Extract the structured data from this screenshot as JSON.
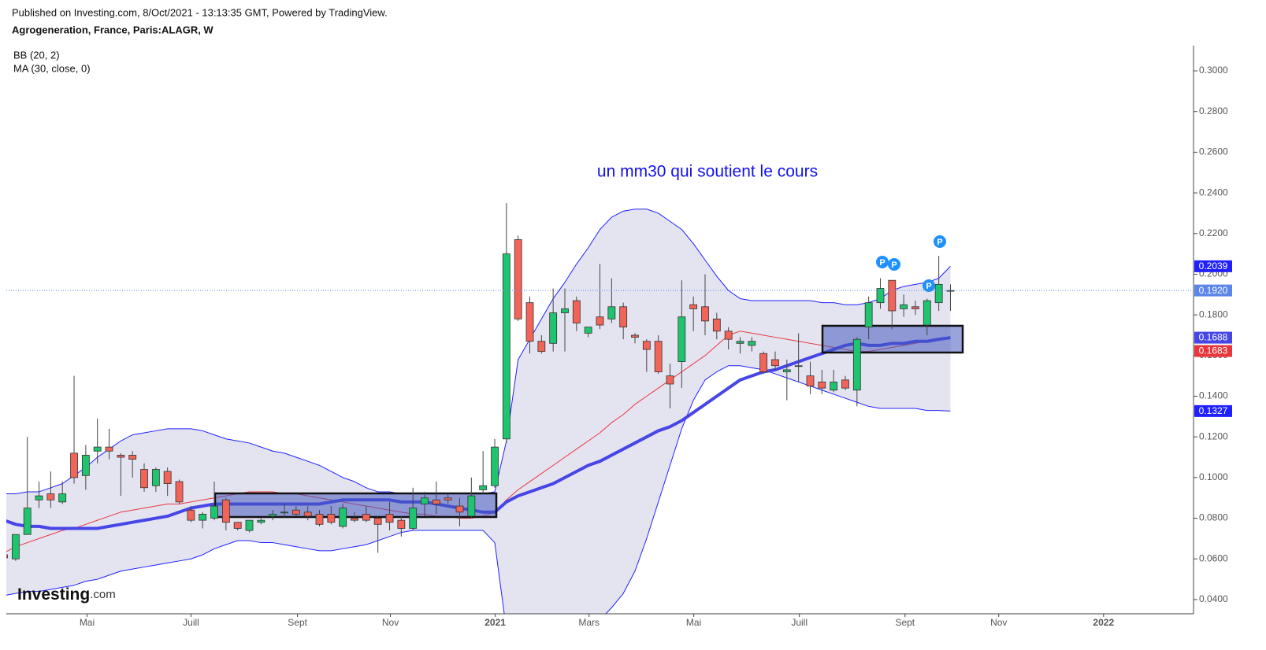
{
  "chart_data": {
    "type": "candlestick",
    "source": "Published on Investing.com, 8/Oct/2021 - 13:13:35 GMT, Powered by TradingView.",
    "title": "Agrogeneration, France, Paris:ALAGR, W",
    "logo": "Investing",
    "logo_suffix": ".com",
    "annotation": "un mm30 qui soutient le cours",
    "marker_label": "P",
    "categories": [
      null,
      null,
      null,
      null,
      null,
      null,
      null,
      null,
      null,
      null,
      null,
      null,
      null,
      null,
      null,
      null,
      null,
      null,
      null,
      null,
      null,
      null,
      null,
      null,
      null,
      null,
      null,
      null,
      null,
      null,
      null,
      null,
      null,
      null,
      null,
      null,
      null,
      null,
      null,
      null,
      null,
      null,
      null,
      null,
      null,
      null,
      null,
      null,
      null,
      null,
      null,
      null,
      null,
      null,
      null,
      null,
      null,
      null,
      null,
      null,
      null,
      null,
      null,
      null,
      null,
      null,
      null,
      null,
      null,
      null,
      null,
      null,
      null,
      null,
      null,
      null,
      null,
      null,
      null,
      null,
      null,
      null
    ],
    "xlim": [
      0.2,
      101.8
    ],
    "xticks": [
      {
        "value": 7.11,
        "label": "Mai"
      },
      {
        "value": 16.01,
        "label": "Juill"
      },
      {
        "value": 25.12,
        "label": "Sept"
      },
      {
        "value": 33.07,
        "label": "Nov"
      },
      {
        "value": 42.04,
        "label": "2021"
      },
      {
        "value": 50.07,
        "label": "Mars"
      },
      {
        "value": 59.03,
        "label": "Mai"
      },
      {
        "value": 68.07,
        "label": "Juill"
      },
      {
        "value": 77.11,
        "label": "Sept"
      },
      {
        "value": 85.13,
        "label": "Nov"
      },
      {
        "value": 94.1,
        "label": "2022"
      }
    ],
    "ylim": [
      0.033,
      0.3124
    ],
    "yticks": [
      {
        "value": 0.04,
        "label": "0.0400"
      },
      {
        "value": 0.06,
        "label": "0.0600"
      },
      {
        "value": 0.08,
        "label": "0.0800"
      },
      {
        "value": 0.1,
        "label": "0.1000"
      },
      {
        "value": 0.12,
        "label": "0.1200"
      },
      {
        "value": 0.14,
        "label": "0.1400"
      },
      {
        "value": 0.16,
        "label": "0.1600"
      },
      {
        "value": 0.18,
        "label": "0.1800"
      },
      {
        "value": 0.2,
        "label": "0.2000"
      },
      {
        "value": 0.22,
        "label": "0.2200"
      },
      {
        "value": 0.24,
        "label": "0.2400"
      },
      {
        "value": 0.26,
        "label": "0.2600"
      },
      {
        "value": 0.28,
        "label": "0.2800"
      },
      {
        "value": 0.3,
        "label": "0.3000"
      }
    ],
    "up_color": "#1ec46e",
    "down_color": "#f26457",
    "close_line_color": "#5b86e8",
    "close_last_label": "0.1920",
    "ohlc": {
      "open": [
        0.062,
        0.06,
        0.072,
        0.089,
        0.092,
        0.088,
        0.112,
        0.101,
        0.113,
        0.115,
        0.111,
        0.111,
        0.104,
        0.096,
        0.103,
        0.098,
        0.084,
        0.079,
        0.08,
        0.089,
        0.078,
        0.074,
        0.078,
        0.081,
        0.083,
        0.084,
        0.083,
        0.082,
        0.082,
        0.076,
        0.08,
        0.082,
        0.08,
        0.082,
        0.079,
        0.075,
        0.087,
        0.089,
        0.09,
        0.086,
        0.081,
        0.094,
        0.096,
        0.119,
        0.217,
        0.186,
        0.167,
        0.166,
        0.181,
        0.187,
        0.171,
        0.179,
        0.178,
        0.184,
        0.17,
        0.167,
        0.167,
        0.15,
        0.157,
        0.185,
        0.184,
        0.178,
        0.172,
        0.166,
        0.165,
        0.161,
        0.158,
        0.152,
        0.155,
        0.15,
        0.147,
        0.143,
        0.148,
        0.143,
        0.174,
        0.186,
        0.197,
        0.183,
        0.184,
        0.175,
        0.186,
        0.192
      ],
      "high": [
        0.062,
        0.072,
        0.12,
        0.098,
        0.103,
        0.098,
        0.15,
        0.116,
        0.129,
        0.124,
        0.112,
        0.113,
        0.107,
        0.105,
        0.105,
        0.099,
        0.086,
        0.083,
        0.098,
        0.09,
        0.078,
        0.079,
        0.08,
        0.084,
        0.087,
        0.086,
        0.086,
        0.084,
        0.086,
        0.087,
        0.083,
        0.086,
        0.081,
        0.088,
        0.081,
        0.095,
        0.093,
        0.098,
        0.092,
        0.09,
        0.1,
        0.113,
        0.119,
        0.235,
        0.219,
        0.189,
        0.17,
        0.193,
        0.193,
        0.189,
        0.174,
        0.205,
        0.198,
        0.186,
        0.171,
        0.168,
        0.17,
        0.156,
        0.197,
        0.189,
        0.2,
        0.181,
        0.174,
        0.169,
        0.169,
        0.162,
        0.162,
        0.158,
        0.171,
        0.157,
        0.153,
        0.153,
        0.15,
        0.169,
        0.189,
        0.198,
        0.197,
        0.19,
        0.187,
        0.188,
        0.209,
        0.195
      ],
      "low": [
        0.059,
        0.059,
        0.072,
        0.085,
        0.085,
        0.087,
        0.097,
        0.094,
        0.107,
        0.109,
        0.091,
        0.1,
        0.093,
        0.093,
        0.091,
        0.087,
        0.078,
        0.075,
        0.079,
        0.074,
        0.074,
        0.073,
        0.077,
        0.079,
        0.08,
        0.081,
        0.079,
        0.076,
        0.077,
        0.075,
        0.078,
        0.078,
        0.063,
        0.074,
        0.071,
        0.074,
        0.081,
        0.082,
        0.087,
        0.076,
        0.08,
        0.092,
        0.095,
        0.117,
        0.177,
        0.161,
        0.161,
        0.162,
        0.162,
        0.172,
        0.169,
        0.173,
        0.176,
        0.168,
        0.166,
        0.152,
        0.151,
        0.134,
        0.144,
        0.172,
        0.17,
        0.168,
        0.163,
        0.161,
        0.162,
        0.151,
        0.153,
        0.138,
        0.147,
        0.141,
        0.141,
        0.142,
        0.143,
        0.135,
        0.168,
        0.183,
        0.173,
        0.179,
        0.18,
        0.17,
        0.182,
        0.182
      ],
      "close": [
        0.0605,
        0.072,
        0.085,
        0.091,
        0.089,
        0.092,
        0.1,
        0.111,
        0.115,
        0.113,
        0.11,
        0.109,
        0.095,
        0.104,
        0.097,
        0.088,
        0.079,
        0.082,
        0.086,
        0.078,
        0.075,
        0.079,
        0.079,
        0.082,
        0.083,
        0.082,
        0.081,
        0.077,
        0.078,
        0.085,
        0.079,
        0.079,
        0.077,
        0.078,
        0.075,
        0.085,
        0.09,
        0.087,
        0.089,
        0.083,
        0.091,
        0.096,
        0.115,
        0.21,
        0.178,
        0.167,
        0.162,
        0.181,
        0.183,
        0.176,
        0.174,
        0.175,
        0.184,
        0.174,
        0.169,
        0.163,
        0.152,
        0.146,
        0.179,
        0.183,
        0.177,
        0.172,
        0.168,
        0.167,
        0.167,
        0.152,
        0.155,
        0.153,
        0.155,
        0.145,
        0.144,
        0.147,
        0.144,
        0.168,
        0.186,
        0.193,
        0.182,
        0.185,
        0.183,
        0.187,
        0.195,
        0.192
      ]
    },
    "bb": {
      "label": "BB (20, 2)",
      "fill": "#e4e4f1",
      "upper": {
        "color": "#2020ff",
        "last_label": "0.2039",
        "values": [
          0.092,
          0.092,
          0.093,
          0.093,
          0.095,
          0.097,
          0.101,
          0.105,
          0.11,
          0.114,
          0.118,
          0.121,
          0.122,
          0.123,
          0.124,
          0.124,
          0.124,
          0.123,
          0.121,
          0.119,
          0.118,
          0.117,
          0.115,
          0.113,
          0.112,
          0.11,
          0.108,
          0.106,
          0.103,
          0.1,
          0.098,
          0.095,
          0.093,
          0.093,
          0.092,
          0.092,
          0.092,
          0.092,
          0.092,
          0.092,
          0.092,
          0.092,
          0.093,
          0.118,
          0.158,
          0.168,
          0.178,
          0.188,
          0.196,
          0.205,
          0.213,
          0.222,
          0.228,
          0.231,
          0.232,
          0.232,
          0.23,
          0.226,
          0.222,
          0.215,
          0.207,
          0.199,
          0.192,
          0.188,
          0.187,
          0.187,
          0.187,
          0.187,
          0.187,
          0.187,
          0.186,
          0.186,
          0.185,
          0.185,
          0.186,
          0.188,
          0.192,
          0.194,
          0.195,
          0.196,
          0.198,
          0.2039
        ]
      },
      "basis": {
        "color": "#e8363c",
        "last_label": "0.1683",
        "values": [
          0.063,
          0.066,
          0.068,
          0.07,
          0.072,
          0.074,
          0.075,
          0.077,
          0.079,
          0.081,
          0.083,
          0.084,
          0.085,
          0.086,
          0.087,
          0.087,
          0.088,
          0.089,
          0.09,
          0.091,
          0.092,
          0.093,
          0.093,
          0.093,
          0.092,
          0.092,
          0.091,
          0.09,
          0.089,
          0.088,
          0.087,
          0.086,
          0.085,
          0.084,
          0.083,
          0.082,
          0.082,
          0.081,
          0.081,
          0.08,
          0.08,
          0.081,
          0.083,
          0.089,
          0.094,
          0.098,
          0.102,
          0.106,
          0.11,
          0.114,
          0.118,
          0.122,
          0.127,
          0.131,
          0.136,
          0.14,
          0.144,
          0.148,
          0.152,
          0.156,
          0.16,
          0.165,
          0.17,
          0.172,
          0.171,
          0.17,
          0.169,
          0.168,
          0.167,
          0.166,
          0.165,
          0.164,
          0.163,
          0.162,
          0.162,
          0.163,
          0.164,
          0.165,
          0.166,
          0.167,
          0.168,
          0.1683
        ]
      },
      "lower": {
        "color": "#2020ff",
        "last_label": "0.1327",
        "values": [
          0.042,
          0.043,
          0.044,
          0.044,
          0.045,
          0.046,
          0.047,
          0.049,
          0.05,
          0.052,
          0.054,
          0.055,
          0.056,
          0.057,
          0.058,
          0.059,
          0.06,
          0.062,
          0.065,
          0.067,
          0.069,
          0.069,
          0.068,
          0.068,
          0.067,
          0.066,
          0.065,
          0.064,
          0.064,
          0.065,
          0.066,
          0.067,
          0.069,
          0.071,
          0.073,
          0.074,
          0.074,
          0.074,
          0.074,
          0.074,
          0.074,
          0.074,
          0.068,
          0.025,
          0.02,
          0.02,
          0.02,
          0.02,
          0.021,
          0.023,
          0.026,
          0.03,
          0.036,
          0.043,
          0.054,
          0.07,
          0.088,
          0.106,
          0.124,
          0.138,
          0.148,
          0.152,
          0.155,
          0.155,
          0.154,
          0.153,
          0.151,
          0.149,
          0.147,
          0.145,
          0.143,
          0.141,
          0.139,
          0.137,
          0.135,
          0.134,
          0.134,
          0.134,
          0.134,
          0.133,
          0.133,
          0.1327
        ]
      }
    },
    "ma": {
      "label": "MA (30, close, 0)",
      "color": "#4646e6",
      "last_label": "0.1688",
      "values": [
        0.079,
        0.077,
        0.076,
        0.076,
        0.075,
        0.075,
        0.075,
        0.075,
        0.075,
        0.076,
        0.077,
        0.078,
        0.079,
        0.08,
        0.081,
        0.083,
        0.085,
        0.086,
        0.087,
        0.087,
        0.087,
        0.087,
        0.087,
        0.087,
        0.087,
        0.087,
        0.087,
        0.087,
        0.088,
        0.089,
        0.089,
        0.089,
        0.089,
        0.089,
        0.088,
        0.088,
        0.088,
        0.087,
        0.086,
        0.085,
        0.084,
        0.083,
        0.083,
        0.088,
        0.091,
        0.093,
        0.095,
        0.097,
        0.1,
        0.103,
        0.106,
        0.108,
        0.111,
        0.114,
        0.117,
        0.12,
        0.123,
        0.125,
        0.128,
        0.132,
        0.136,
        0.14,
        0.144,
        0.148,
        0.15,
        0.152,
        0.153,
        0.155,
        0.157,
        0.159,
        0.161,
        0.163,
        0.165,
        0.166,
        0.165,
        0.165,
        0.166,
        0.166,
        0.167,
        0.167,
        0.168,
        0.1688
      ]
    }
  }
}
